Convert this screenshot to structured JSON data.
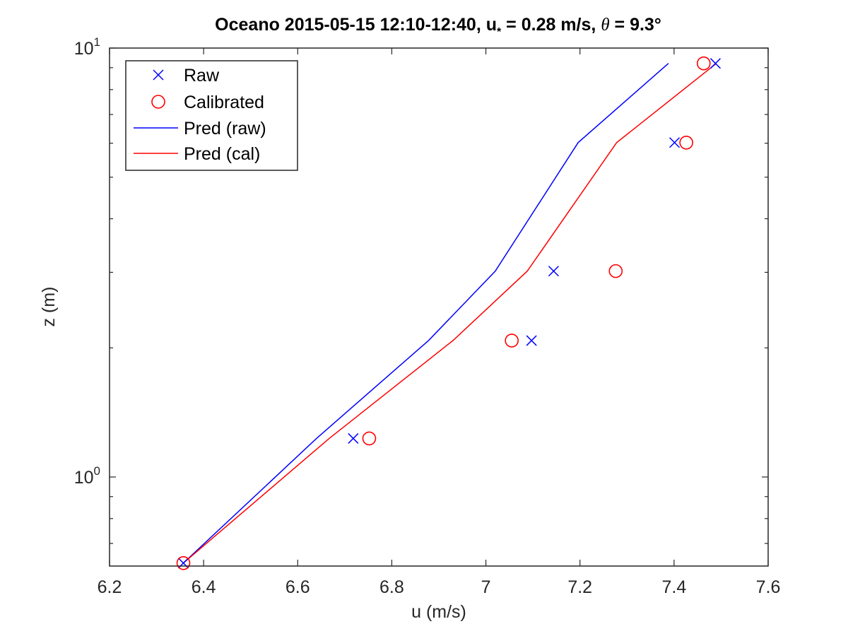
{
  "chart_data": {
    "type": "scatter",
    "title": {
      "main": "Oceano 2015-05-15 12:10-12:40, u",
      "ustar_sub": "*",
      "ustar_val": " = 0.28 m/s, ",
      "theta": "θ",
      "theta_val": " = 9.3°"
    },
    "xlabel": "u (m/s)",
    "ylabel": "z (m)",
    "xlim": [
      6.2,
      7.6
    ],
    "ylim": [
      0.62,
      10
    ],
    "yscale": "log",
    "xticks": [
      6.2,
      6.4,
      6.6,
      6.8,
      7.0,
      7.2,
      7.4,
      7.6
    ],
    "xtick_labels": [
      "6.2",
      "6.4",
      "6.6",
      "6.8",
      "7",
      "7.2",
      "7.4",
      "7.6"
    ],
    "yticks": [
      1,
      10
    ],
    "ytick_base": "10",
    "ytick_exponents": [
      "0",
      "1"
    ],
    "legend_position": "top-left",
    "grid": false,
    "series": [
      {
        "name": "Raw",
        "kind": "marker",
        "marker": "x",
        "color": "#0000ff",
        "x": [
          6.357,
          6.718,
          7.097,
          7.144,
          7.401,
          7.488
        ],
        "y": [
          0.63,
          1.23,
          2.08,
          3.02,
          6.02,
          9.21
        ]
      },
      {
        "name": "Calibrated",
        "kind": "marker",
        "marker": "circle",
        "color": "#ff0000",
        "x": [
          6.357,
          6.752,
          7.055,
          7.276,
          7.426,
          7.463
        ],
        "y": [
          0.63,
          1.23,
          2.08,
          3.02,
          6.02,
          9.21
        ]
      },
      {
        "name": "Pred (raw)",
        "kind": "line",
        "color": "#0000ff",
        "x": [
          6.357,
          6.64,
          6.878,
          7.02,
          7.196,
          7.388
        ],
        "y": [
          0.63,
          1.23,
          2.08,
          3.02,
          6.02,
          9.21
        ]
      },
      {
        "name": "Pred (cal)",
        "kind": "line",
        "color": "#ff0000",
        "x": [
          6.357,
          6.667,
          6.93,
          7.088,
          7.278,
          7.49
        ],
        "y": [
          0.63,
          1.23,
          2.08,
          3.02,
          6.02,
          9.21
        ]
      }
    ]
  }
}
